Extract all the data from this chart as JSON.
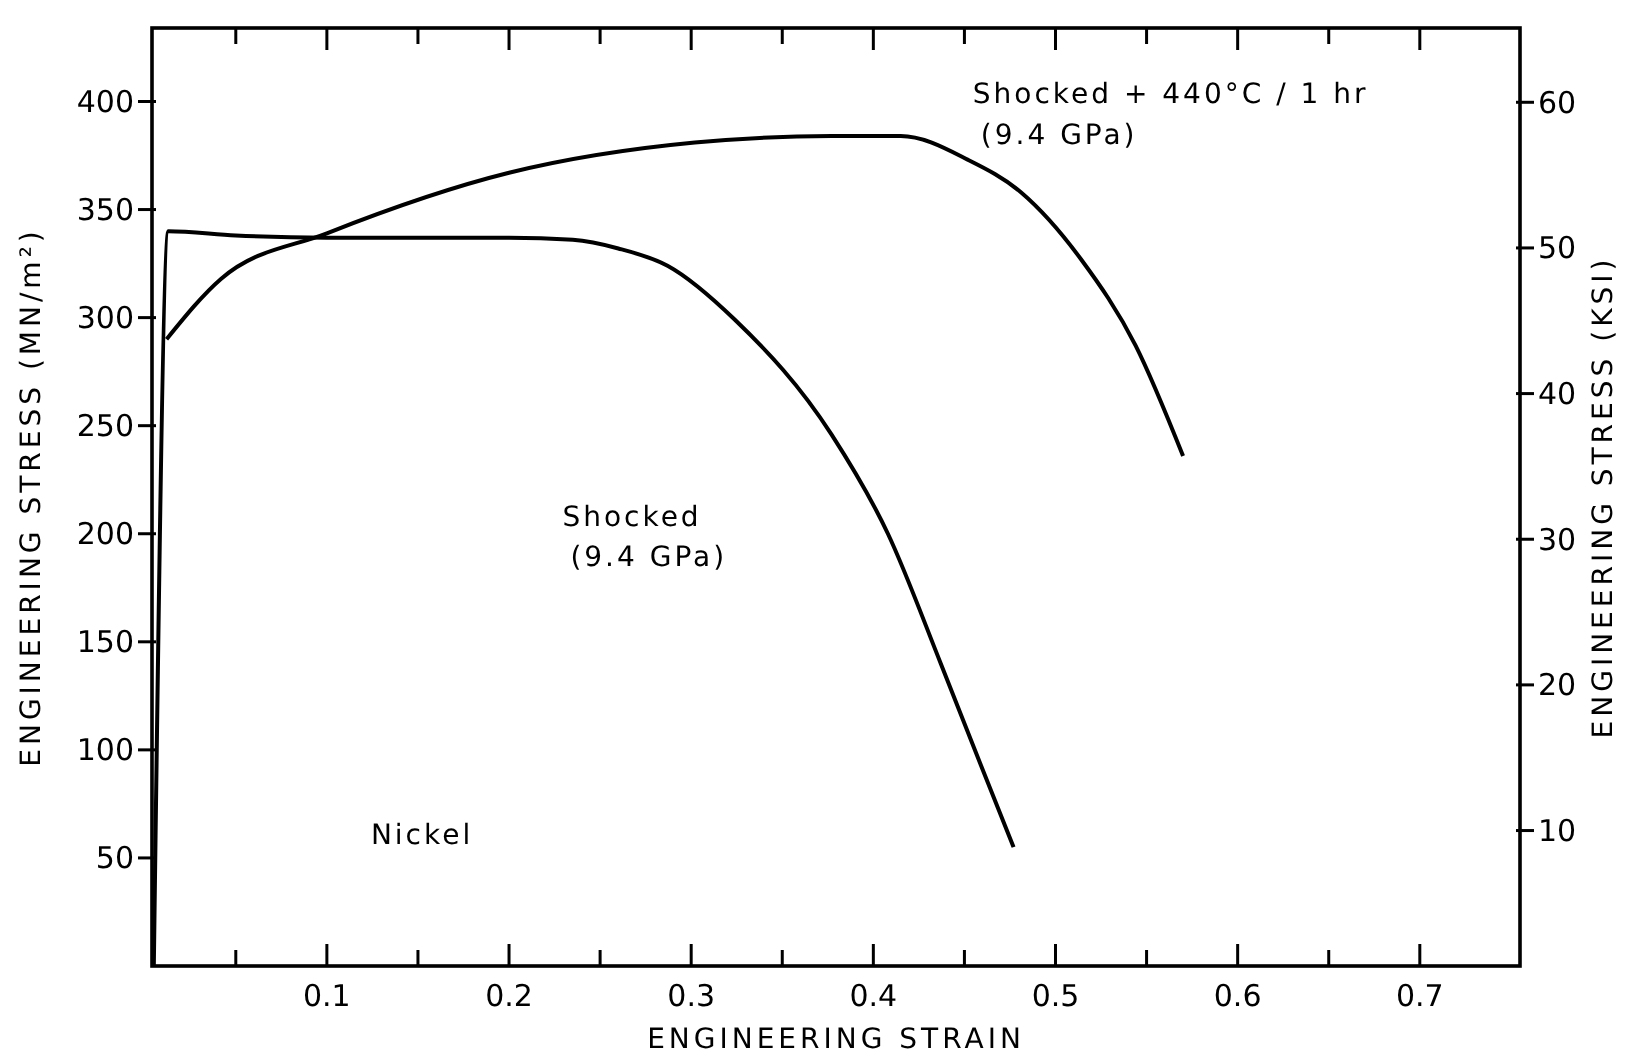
{
  "chart_data": {
    "type": "line",
    "xlabel": "ENGINEERING STRAIN",
    "ylabel": "ENGINEERING STRESS (MN/m²)",
    "y2label": "ENGINEERING STRESS (KSI)",
    "xlim": [
      0.004,
      0.755
    ],
    "ylim": [
      0,
      434
    ],
    "y2lim": [
      0.7,
      65.1
    ],
    "xticks": [
      {
        "value": 0.05,
        "label": null
      },
      {
        "value": 0.1,
        "label": "0.1"
      },
      {
        "value": 0.15,
        "label": null
      },
      {
        "value": 0.2,
        "label": "0.2"
      },
      {
        "value": 0.25,
        "label": null
      },
      {
        "value": 0.3,
        "label": "0.3"
      },
      {
        "value": 0.35,
        "label": null
      },
      {
        "value": 0.4,
        "label": "0.4"
      },
      {
        "value": 0.45,
        "label": null
      },
      {
        "value": 0.5,
        "label": "0.5"
      },
      {
        "value": 0.55,
        "label": null
      },
      {
        "value": 0.6,
        "label": "0.6"
      },
      {
        "value": 0.65,
        "label": null
      },
      {
        "value": 0.7,
        "label": "0.7"
      }
    ],
    "yticks": [
      50,
      100,
      150,
      200,
      250,
      300,
      350,
      400
    ],
    "y2ticks": [
      10,
      20,
      30,
      40,
      50,
      60
    ],
    "grid": false,
    "marker": "none",
    "line_style": "solid",
    "series": [
      {
        "color": "#000000",
        "x": [
          0.005,
          0.013,
          0.05,
          0.1,
          0.2,
          0.235,
          0.26,
          0.287,
          0.324,
          0.377,
          0.408,
          0.437,
          0.459,
          0.477
        ],
        "values": [
          0,
          340,
          338,
          337,
          337,
          336,
          332,
          324,
          299,
          246,
          200,
          140,
          93,
          55
        ]
      },
      {
        "color": "#000000",
        "x": [
          0.012,
          0.042,
          0.1,
          0.2,
          0.302,
          0.377,
          0.415,
          0.452,
          0.481,
          0.514,
          0.544,
          0.57
        ],
        "values": [
          290,
          318,
          339,
          367,
          381,
          384,
          384,
          373,
          358,
          327,
          287,
          236
        ]
      }
    ],
    "annotations": [
      "Shocked\n(9.4 GPa)",
      "Shocked + 440°C / 1 hr\n(9.4 GPa)",
      "Nickel"
    ]
  }
}
